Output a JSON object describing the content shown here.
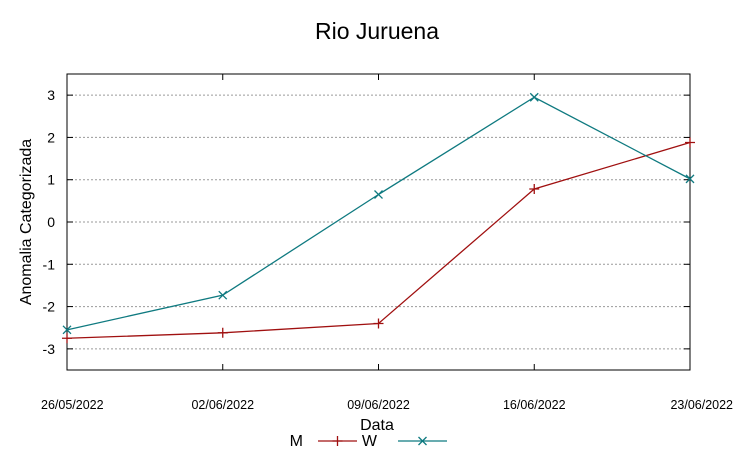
{
  "chart_data": {
    "type": "line",
    "title": "Rio Juruena",
    "xlabel": "Data",
    "ylabel": "Anomalia Categorizada",
    "x": [
      "26/05/2022",
      "02/06/2022",
      "09/06/2022",
      "16/06/2022",
      "23/06/2022"
    ],
    "xlim": [
      0,
      4
    ],
    "ylim": [
      -3.5,
      3.5
    ],
    "yticks": [
      -3,
      -2,
      -1,
      0,
      1,
      2,
      3
    ],
    "ytick_labels": [
      "-3",
      "-2",
      "-1",
      "0",
      "1",
      "2",
      "3"
    ],
    "grid": true,
    "legend_position": "bottom-center",
    "series": [
      {
        "name": "M",
        "color": "#a01010",
        "marker": "plus",
        "values": [
          -2.75,
          -2.62,
          -2.4,
          0.78,
          1.88
        ]
      },
      {
        "name": "W",
        "color": "#0f7a80",
        "marker": "cross",
        "values": [
          -2.55,
          -1.73,
          0.65,
          2.95,
          1.02
        ]
      }
    ]
  }
}
